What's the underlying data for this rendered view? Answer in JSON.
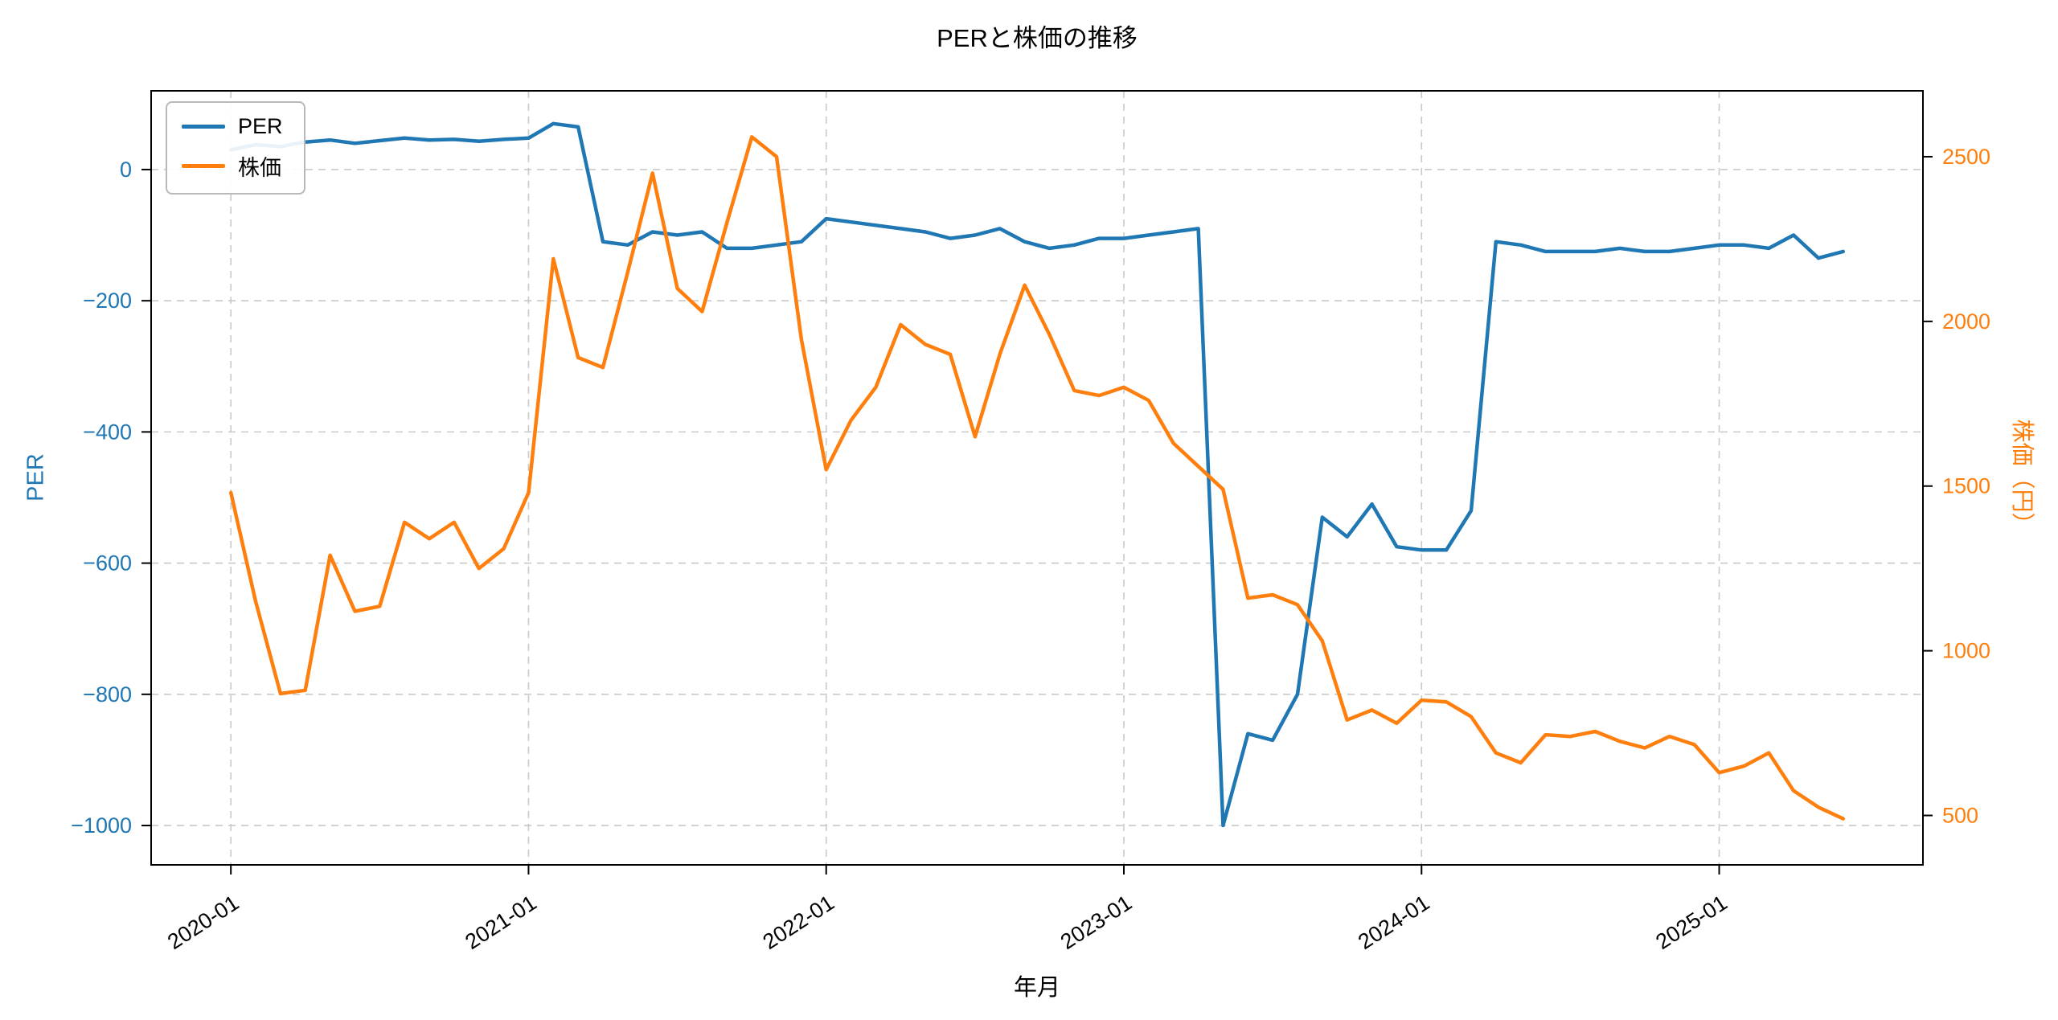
{
  "chart_data": {
    "type": "line",
    "title": "PERと株価の推移",
    "xlabel": "年月",
    "ylabel_left": "PER",
    "ylabel_right": "株価（円）",
    "grid": true,
    "legend": {
      "position": "upper-left",
      "entries": [
        "PER",
        "株価"
      ]
    },
    "x_ticks": [
      "2020-01",
      "2021-01",
      "2022-01",
      "2023-01",
      "2024-01",
      "2025-01"
    ],
    "x": [
      "2020-01",
      "2020-02",
      "2020-03",
      "2020-04",
      "2020-05",
      "2020-06",
      "2020-07",
      "2020-08",
      "2020-09",
      "2020-10",
      "2020-11",
      "2020-12",
      "2021-01",
      "2021-02",
      "2021-03",
      "2021-04",
      "2021-05",
      "2021-06",
      "2021-07",
      "2021-08",
      "2021-09",
      "2021-10",
      "2021-11",
      "2021-12",
      "2022-01",
      "2022-02",
      "2022-03",
      "2022-04",
      "2022-05",
      "2022-06",
      "2022-07",
      "2022-08",
      "2022-09",
      "2022-10",
      "2022-11",
      "2022-12",
      "2023-01",
      "2023-02",
      "2023-03",
      "2023-04",
      "2023-05",
      "2023-06",
      "2023-07",
      "2023-08",
      "2023-09",
      "2023-10",
      "2023-11",
      "2023-12",
      "2024-01",
      "2024-02",
      "2024-03",
      "2024-04",
      "2024-05",
      "2024-06",
      "2024-07",
      "2024-08",
      "2024-09",
      "2024-10",
      "2024-11",
      "2024-12",
      "2025-01",
      "2025-02",
      "2025-03",
      "2025-04",
      "2025-05",
      "2025-06"
    ],
    "y_left": {
      "ticks": [
        0,
        -200,
        -400,
        -600,
        -800,
        -1000
      ],
      "lim": [
        -1060,
        120
      ]
    },
    "y_right": {
      "ticks": [
        2500,
        2000,
        1500,
        1000,
        500
      ],
      "lim": [
        350,
        2700
      ]
    },
    "series": [
      {
        "id": "per",
        "name": "PER",
        "axis": "left",
        "color": "#1f77b4",
        "values": [
          30,
          38,
          35,
          42,
          45,
          40,
          44,
          48,
          45,
          46,
          43,
          46,
          48,
          70,
          65,
          -110,
          -115,
          -95,
          -100,
          -95,
          -120,
          -120,
          -115,
          -110,
          -75,
          -80,
          -85,
          -90,
          -95,
          -105,
          -100,
          -90,
          -110,
          -120,
          -115,
          -105,
          -105,
          -100,
          -95,
          -90,
          -1000,
          -860,
          -870,
          -800,
          -530,
          -560,
          -510,
          -575,
          -580,
          -580,
          -520,
          -110,
          -115,
          -125,
          -125,
          -125,
          -120,
          -125,
          -125,
          -120,
          -115,
          -115,
          -120,
          -100,
          -135,
          -125
        ]
      },
      {
        "id": "kabuka",
        "name": "株価",
        "axis": "right",
        "color": "#ff7f0e",
        "values": [
          1480,
          1150,
          870,
          880,
          1290,
          1120,
          1135,
          1390,
          1340,
          1390,
          1250,
          1310,
          1480,
          2190,
          1890,
          1860,
          2150,
          2450,
          2100,
          2030,
          2300,
          2560,
          2500,
          1945,
          1550,
          1700,
          1800,
          1990,
          1930,
          1900,
          1650,
          1900,
          2110,
          1960,
          1790,
          1775,
          1800,
          1760,
          1630,
          1560,
          1490,
          1160,
          1170,
          1140,
          1030,
          790,
          820,
          780,
          850,
          845,
          800,
          690,
          660,
          745,
          740,
          755,
          725,
          705,
          740,
          715,
          630,
          650,
          690,
          575,
          525,
          490
        ]
      }
    ]
  }
}
